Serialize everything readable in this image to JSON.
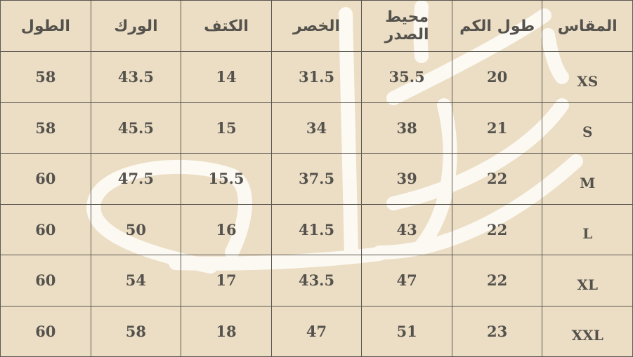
{
  "headers": [
    "المقاس",
    "طول الكم",
    "محيط الصدر",
    "الخصر",
    "الكتف",
    "الورك",
    "الطول"
  ],
  "rows": [
    [
      "XS",
      "20",
      "35.5",
      "31.5",
      "14",
      "43.5",
      "58"
    ],
    [
      "S",
      "21",
      "38",
      "34",
      "15",
      "45.5",
      "58"
    ],
    [
      "M",
      "22",
      "39",
      "37.5",
      "15.5",
      "47.5",
      "60"
    ],
    [
      "L",
      "22",
      "43",
      "41.5",
      "16",
      "50",
      "60"
    ],
    [
      "XL",
      "22",
      "47",
      "43.5",
      "17",
      "54",
      "60"
    ],
    [
      "XXL",
      "23",
      "51",
      "47",
      "18",
      "58",
      "60"
    ]
  ],
  "colors": {
    "background": "#ecdec4",
    "grid": "#5a5650",
    "text": "#55524d",
    "watermark": "#ffffff"
  }
}
